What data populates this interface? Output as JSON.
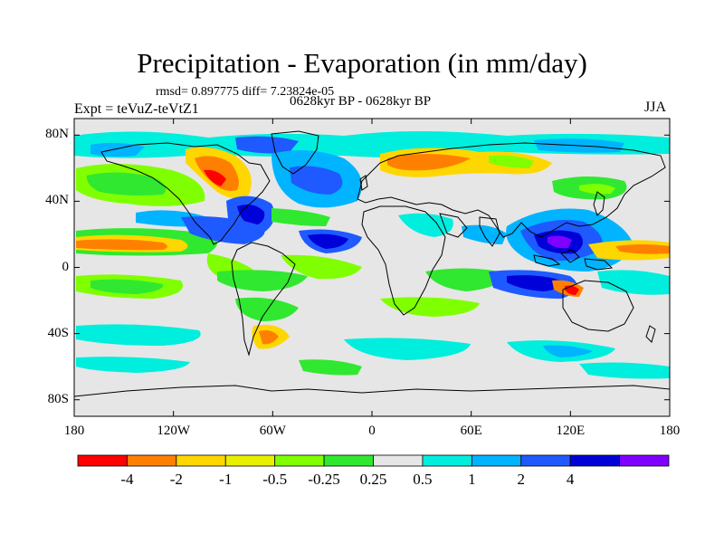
{
  "title": "Precipitation - Evaporation (in mm/day)",
  "stats": "rmsd= 0.897775  diff= 7.23824e-05",
  "experiment": "Expt = teVuZ-teVtZ1",
  "period": "0628kyr BP - 0628kyr BP",
  "season": "JJA",
  "map": {
    "projection": "cylindrical equidistant",
    "lon_range": [
      -180,
      180
    ],
    "lat_range": [
      -90,
      90
    ],
    "lat_ticks": [
      {
        "value": 80,
        "label": "80N"
      },
      {
        "value": 40,
        "label": "40N"
      },
      {
        "value": 0,
        "label": "0"
      },
      {
        "value": -40,
        "label": "40S"
      },
      {
        "value": -80,
        "label": "80S"
      }
    ],
    "lon_ticks": [
      {
        "value": -180,
        "label": "180"
      },
      {
        "value": -120,
        "label": "120W"
      },
      {
        "value": -60,
        "label": "60W"
      },
      {
        "value": 0,
        "label": "0"
      },
      {
        "value": 60,
        "label": "60E"
      },
      {
        "value": 120,
        "label": "120E"
      },
      {
        "value": 180,
        "label": "180"
      }
    ]
  },
  "colorbar": {
    "colors": [
      "#ff0000",
      "#ff8000",
      "#ffd700",
      "#e8f000",
      "#80ff00",
      "#30e830",
      "#e6e6e6",
      "#00eedd",
      "#00b4ff",
      "#1e5aff",
      "#0000d8",
      "#8000ff"
    ],
    "labels": [
      "-4",
      "-2",
      "-1",
      "-0.5",
      "-0.25",
      "0.25",
      "0.5",
      "1",
      "2",
      "4"
    ]
  },
  "colors": {
    "ocean_background": "#e6e6e6",
    "coastline": "#000000"
  }
}
